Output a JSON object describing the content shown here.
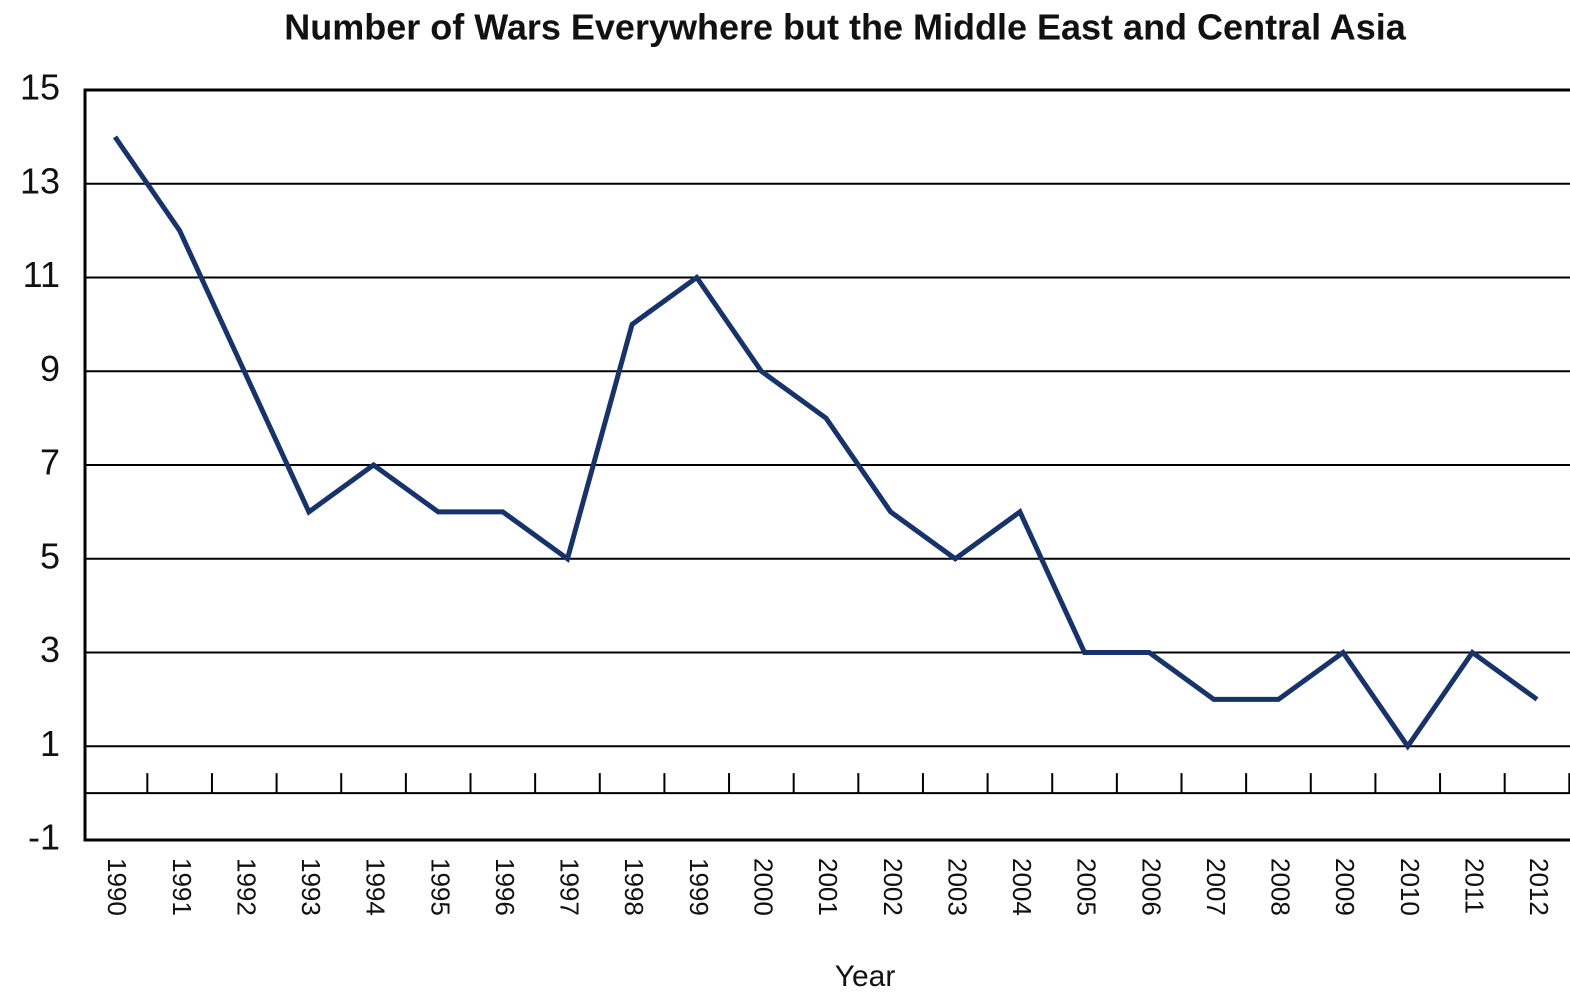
{
  "chart_data": {
    "type": "line",
    "title": "Number of Wars Everywhere but the Middle East and Central Asia",
    "x_label": "Year",
    "categories": [
      "1990",
      "1991",
      "1992",
      "1993",
      "1994",
      "1995",
      "1996",
      "1997",
      "1998",
      "1999",
      "2000",
      "2001",
      "2002",
      "2003",
      "2004",
      "2005",
      "2006",
      "2007",
      "2008",
      "2009",
      "2010",
      "2011",
      "2012"
    ],
    "series": [
      {
        "name": "Number of Wars",
        "color": "#16346b",
        "values": [
          14,
          12,
          9,
          6,
          7,
          6,
          6,
          5,
          10,
          11,
          9,
          8,
          6,
          5,
          6,
          3,
          3,
          2,
          2,
          3,
          1,
          3,
          2
        ]
      }
    ],
    "ylim": [
      -1,
      15
    ],
    "yticks": [
      -1,
      1,
      3,
      5,
      7,
      9,
      11,
      13,
      15
    ],
    "grid": true
  }
}
